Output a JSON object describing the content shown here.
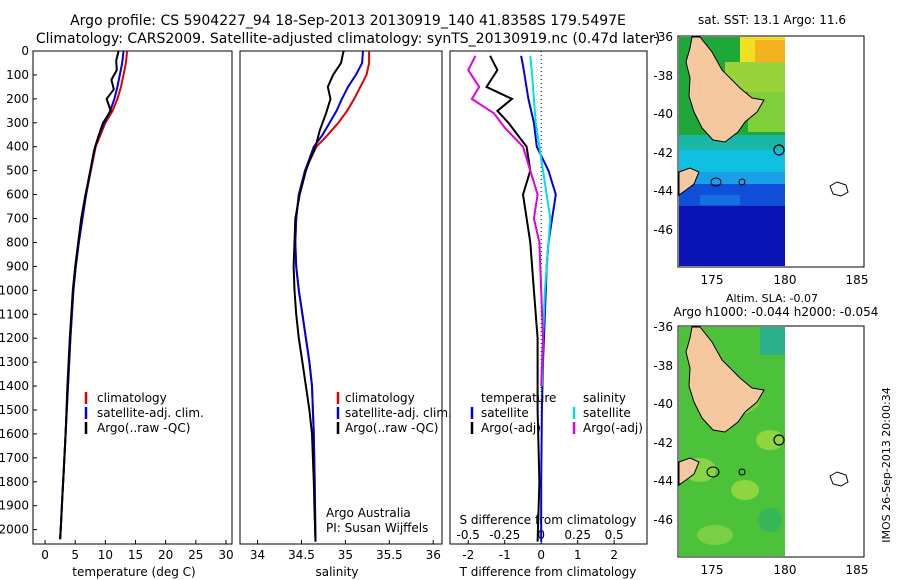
{
  "header": {
    "line1": "Argo profile: CS 5904227_94 18-Sep-2013 20130919_140 41.8358S 179.5497E",
    "line2": "Climatology: CARS2009. Satellite-adjusted climatology: synTS_20130919.nc (0.47d later)"
  },
  "colors": {
    "climatology": "#e00000",
    "satellite": "#0000e0",
    "argo": "#000000",
    "sat_salinity": "#00e0e0",
    "argo_salinity": "#e000e0",
    "land": "#f5c8a0"
  },
  "footer_stamp": "IMOS 26-Sep-2013 20:00:34",
  "chart_data": [
    {
      "type": "line",
      "name": "temperature-panel",
      "xlabel": "temperature (deg C)",
      "ylabel": "",
      "xlim": [
        -2,
        31
      ],
      "ylim": [
        2060,
        0
      ],
      "xticks": [
        0,
        5,
        10,
        15,
        20,
        25,
        30
      ],
      "yticks": [
        0,
        100,
        200,
        300,
        400,
        500,
        600,
        700,
        800,
        900,
        1000,
        1100,
        1200,
        1300,
        1400,
        1500,
        1600,
        1700,
        1800,
        1900,
        2000
      ],
      "legend": [
        "climatology",
        "satellite-adj. clim.",
        "Argo(..raw -QC)"
      ],
      "series": [
        {
          "name": "climatology",
          "color": "#e00000",
          "x": [
            13.6,
            13.4,
            13.0,
            12.6,
            12.0,
            11.2,
            10.0,
            9.2,
            8.4,
            7.6,
            6.8,
            6.2,
            5.6,
            5.1,
            4.7,
            4.2,
            3.8,
            3.4,
            3.1,
            2.9,
            2.7,
            2.6,
            2.5
          ],
          "y": [
            0,
            50,
            100,
            150,
            200,
            250,
            300,
            350,
            400,
            500,
            600,
            700,
            800,
            900,
            1000,
            1200,
            1400,
            1600,
            1750,
            1850,
            1950,
            2000,
            2040
          ]
        },
        {
          "name": "satellite-adj. clim.",
          "color": "#0000e0",
          "x": [
            13.0,
            12.8,
            12.4,
            12.0,
            11.5,
            10.8,
            9.8,
            9.0,
            8.3,
            7.5,
            6.8,
            6.2,
            5.6,
            5.1,
            4.7,
            4.2,
            3.8,
            3.4,
            3.1,
            2.9,
            2.7,
            2.6,
            2.5
          ],
          "y": [
            0,
            50,
            100,
            150,
            200,
            250,
            300,
            350,
            400,
            500,
            600,
            700,
            800,
            900,
            1000,
            1200,
            1400,
            1600,
            1750,
            1850,
            1950,
            2000,
            2040
          ]
        },
        {
          "name": "Argo(..raw -QC)",
          "color": "#000000",
          "x": [
            12.2,
            11.8,
            11.9,
            11.0,
            11.4,
            10.2,
            10.9,
            9.6,
            8.8,
            8.1,
            7.5,
            6.7,
            6.0,
            5.5,
            5.0,
            4.6,
            4.1,
            3.7,
            3.4,
            3.1,
            2.9,
            2.7,
            2.6,
            2.5
          ],
          "y": [
            0,
            40,
            80,
            120,
            160,
            200,
            250,
            300,
            360,
            420,
            500,
            600,
            700,
            800,
            900,
            1000,
            1200,
            1400,
            1600,
            1750,
            1850,
            1950,
            2000,
            2040
          ]
        }
      ]
    },
    {
      "type": "line",
      "name": "salinity-panel",
      "xlabel": "salinity",
      "ylabel": "",
      "xlim": [
        33.8,
        36.1
      ],
      "ylim": [
        2060,
        0
      ],
      "xticks": [
        34,
        34.5,
        35,
        35.5,
        36
      ],
      "legend": [
        "climatology",
        "satellite-adj. clim.",
        "Argo(..raw -QC)"
      ],
      "annotation": [
        "Argo Australia",
        "PI: Susan Wijffels"
      ],
      "series": [
        {
          "name": "climatology",
          "color": "#e00000",
          "x": [
            35.27,
            35.27,
            35.24,
            35.17,
            35.1,
            35.02,
            34.92,
            34.8,
            34.67,
            34.54,
            34.47,
            34.44,
            34.43,
            34.44,
            34.47,
            34.51,
            34.55,
            34.59,
            34.62,
            34.64,
            34.65,
            34.66
          ],
          "y": [
            0,
            50,
            100,
            150,
            200,
            250,
            300,
            350,
            400,
            500,
            600,
            700,
            800,
            900,
            1000,
            1100,
            1200,
            1300,
            1400,
            1600,
            1800,
            2050
          ]
        },
        {
          "name": "satellite-adj. clim.",
          "color": "#0000e0",
          "x": [
            35.2,
            35.19,
            35.12,
            35.03,
            34.96,
            34.9,
            34.82,
            34.74,
            34.64,
            34.54,
            34.47,
            34.44,
            34.43,
            34.44,
            34.47,
            34.51,
            34.55,
            34.59,
            34.62,
            34.64,
            34.65,
            34.66
          ],
          "y": [
            0,
            50,
            100,
            150,
            200,
            250,
            300,
            350,
            400,
            500,
            600,
            700,
            800,
            900,
            1000,
            1100,
            1200,
            1300,
            1400,
            1600,
            1800,
            2050
          ]
        },
        {
          "name": "Argo(..raw -QC)",
          "color": "#000000",
          "x": [
            34.98,
            34.95,
            34.86,
            34.8,
            34.83,
            34.78,
            34.71,
            34.66,
            34.6,
            34.55,
            34.48,
            34.43,
            34.42,
            34.41,
            34.42,
            34.44,
            34.47,
            34.51,
            34.55,
            34.59,
            34.62,
            34.64,
            34.65,
            34.66
          ],
          "y": [
            0,
            50,
            100,
            150,
            200,
            260,
            330,
            400,
            450,
            500,
            600,
            700,
            800,
            900,
            1000,
            1100,
            1200,
            1300,
            1400,
            1500,
            1600,
            1800,
            1950,
            2050
          ]
        }
      ]
    },
    {
      "type": "line",
      "name": "difference-panel",
      "xlabel": "T difference from climatology",
      "xlabel2": "S difference from climatology",
      "xlim": [
        -2.5,
        2.9
      ],
      "ylim": [
        2060,
        0
      ],
      "xticks": [
        -2,
        -1,
        0,
        1,
        2
      ],
      "xticks_s": [
        -0.5,
        -0.25,
        0,
        0.25,
        0.5
      ],
      "xtick_labels_s": [
        "-0.5",
        "-0.25",
        "0",
        "0.25",
        "0.5"
      ],
      "legend_titles": [
        "temperature",
        "salinity"
      ],
      "legend": [
        "satellite",
        "Argo(-adj)",
        "satellite",
        "Argo(-adj)"
      ],
      "series": [
        {
          "name": "temperature satellite",
          "color": "#0000e0",
          "x": [
            -0.55,
            -0.5,
            -0.35,
            -0.2,
            -0.12,
            0.2,
            0.4,
            0.3,
            0.2,
            0.15,
            0.1,
            0.05,
            0.02,
            0,
            0
          ],
          "y": [
            20,
            60,
            200,
            300,
            400,
            500,
            600,
            700,
            800,
            900,
            1100,
            1300,
            1500,
            1800,
            2050
          ]
        },
        {
          "name": "temperature Argo(-adj)",
          "color": "#000000",
          "x": [
            -1.4,
            -1.2,
            -1.5,
            -0.8,
            -1.2,
            -0.9,
            -0.4,
            -0.3,
            -0.5,
            -0.3,
            -0.2,
            -0.1,
            -0.1,
            -0.05,
            -0.1
          ],
          "y": [
            20,
            80,
            150,
            200,
            250,
            300,
            400,
            500,
            600,
            800,
            1000,
            1200,
            1500,
            1800,
            2050
          ]
        },
        {
          "name": "salinity satellite",
          "color": "#00e0e0",
          "x": [
            -0.3,
            -0.25,
            -0.2,
            -0.15,
            -0.05,
            0.05,
            0.15,
            0.25,
            0.2,
            0.1,
            0.05,
            0.02
          ],
          "y": [
            20,
            100,
            200,
            300,
            400,
            500,
            600,
            700,
            800,
            1000,
            1200,
            1400
          ]
        },
        {
          "name": "salinity Argo(-adj)",
          "color": "#e000e0",
          "x": [
            -1.8,
            -2.0,
            -1.7,
            -1.9,
            -1.3,
            -1.0,
            -0.5,
            -0.3,
            -0.1,
            -0.2,
            -0.05,
            0,
            0.05,
            0
          ],
          "y": [
            20,
            80,
            150,
            200,
            260,
            320,
            400,
            500,
            600,
            700,
            800,
            1000,
            1200,
            1400
          ]
        }
      ]
    },
    {
      "type": "heatmap",
      "name": "sst-map",
      "title": "sat. SST: 13.1  Argo: 11.6",
      "xticks": [
        175,
        180,
        185
      ],
      "yticks": [
        -36,
        -38,
        -40,
        -42,
        -44,
        -46
      ],
      "xlim": [
        172.5,
        186.5
      ],
      "ylim": [
        -48,
        -35.5
      ]
    },
    {
      "type": "heatmap",
      "name": "sla-map",
      "title": "Altim. SLA: -0.07",
      "subtitle": "Argo h1000: -0.044 h2000: -0.054",
      "xticks": [
        175,
        180,
        185
      ],
      "yticks": [
        -36,
        -38,
        -40,
        -42,
        -44,
        -46
      ],
      "xlim": [
        172.5,
        186.5
      ],
      "ylim": [
        -48,
        -35.5
      ]
    }
  ]
}
